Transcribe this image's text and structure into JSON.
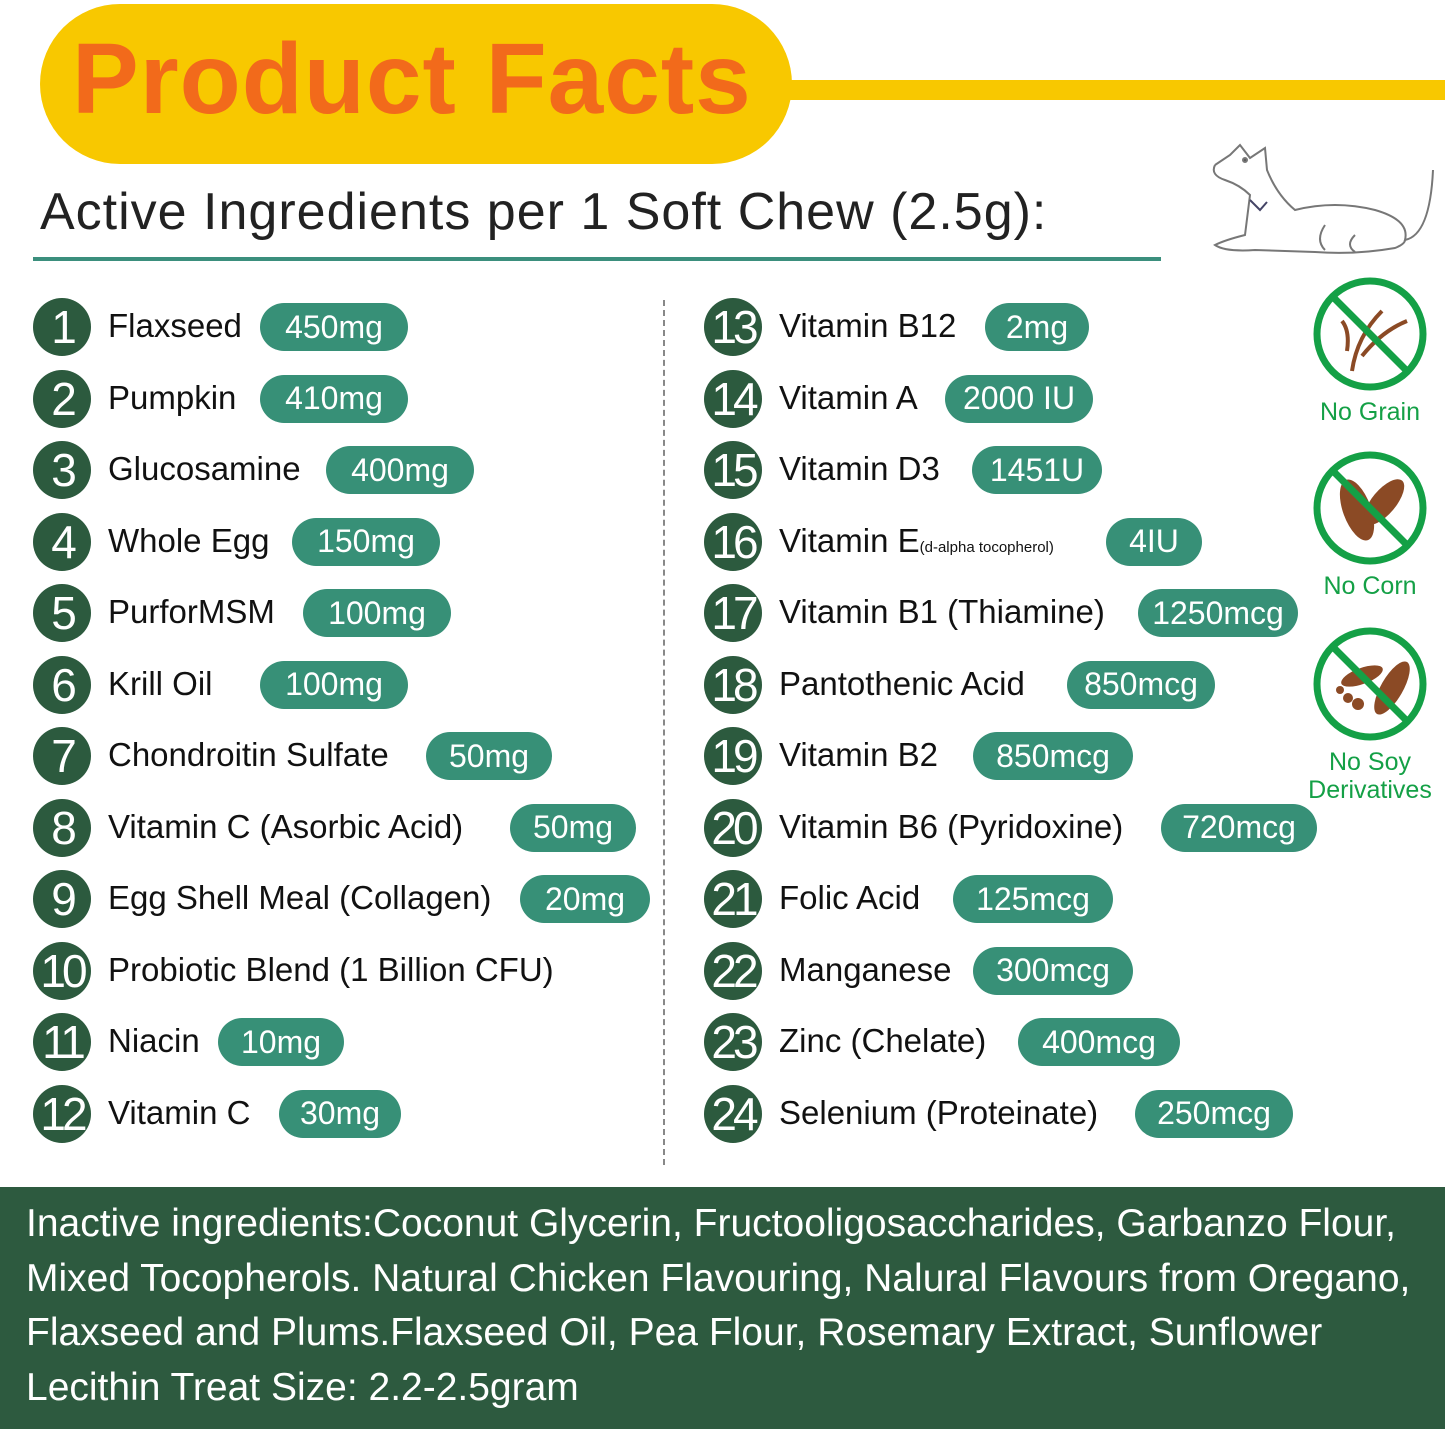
{
  "header": {
    "title": "Product Facts",
    "subtitle": "Active Ingredients per 1 Soft Chew (2.5g):"
  },
  "ingredients": [
    {
      "num": "1",
      "name": "Flaxseed",
      "amount": "450mg"
    },
    {
      "num": "2",
      "name": "Pumpkin",
      "amount": "410mg"
    },
    {
      "num": "3",
      "name": "Glucosamine",
      "amount": "400mg"
    },
    {
      "num": "4",
      "name": "Whole Egg",
      "amount": "150mg"
    },
    {
      "num": "5",
      "name": "PurforMSM",
      "amount": "100mg"
    },
    {
      "num": "6",
      "name": "Krill Oil",
      "amount": "100mg"
    },
    {
      "num": "7",
      "name": "Chondroitin Sulfate",
      "amount": "50mg"
    },
    {
      "num": "8",
      "name": "Vitamin C (Asorbic Acid)",
      "amount": "50mg"
    },
    {
      "num": "9",
      "name": "Egg Shell Meal (Collagen)",
      "amount": "20mg"
    },
    {
      "num": "10",
      "name": "Probiotic Blend (1 Billion CFU)",
      "amount": ""
    },
    {
      "num": "11",
      "name": "Niacin",
      "amount": "10mg"
    },
    {
      "num": "12",
      "name": "Vitamin C",
      "amount": "30mg"
    },
    {
      "num": "13",
      "name": "Vitamin B12",
      "amount": "2mg"
    },
    {
      "num": "14",
      "name": "Vitamin A",
      "amount": "2000 IU"
    },
    {
      "num": "15",
      "name": "Vitamin D3",
      "amount": "1451U"
    },
    {
      "num": "16",
      "name": "Vitamin E",
      "sub": "(d-alpha tocopherol)",
      "amount": "4IU"
    },
    {
      "num": "17",
      "name": "Vitamin B1 (Thiamine)",
      "amount": "1250mcg"
    },
    {
      "num": "18",
      "name": "Pantothenic Acid",
      "amount": "850mcg"
    },
    {
      "num": "19",
      "name": "Vitamin B2",
      "amount": "850mcg"
    },
    {
      "num": "20",
      "name": "Vitamin B6 (Pyridoxine)",
      "amount": "720mcg"
    },
    {
      "num": "21",
      "name": "Folic Acid",
      "amount": "125mcg"
    },
    {
      "num": "22",
      "name": "Manganese",
      "amount": "300mcg"
    },
    {
      "num": "23",
      "name": "Zinc (Chelate)",
      "amount": "400mcg"
    },
    {
      "num": "24",
      "name": "Selenium (Proteinate)",
      "amount": "250mcg"
    }
  ],
  "badges": [
    {
      "label": "No Grain",
      "icon": "no-grain-icon"
    },
    {
      "label": "No Corn",
      "icon": "no-corn-icon"
    },
    {
      "label": "No Soy Derivatives",
      "icon": "no-soy-icon"
    }
  ],
  "footer": {
    "text": "Inactive ingredients:Coconut Glycerin, Fructooligosaccharides, Garbanzo Flour, Mixed Tocopherols. Natural Chicken Flavouring, Nalural Flavours from Oregano, Flaxseed and Plums.Flaxseed Oil, Pea Flour, Rosemary Extract, Sunflower Lecithin Treat Size: 2.2-2.5gram"
  },
  "colors": {
    "title": "#f26a1b",
    "banner": "#f8c800",
    "pill": "#379077",
    "number": "#2c5a3e",
    "footer": "#2d5a3f",
    "badge": "#14a046"
  }
}
